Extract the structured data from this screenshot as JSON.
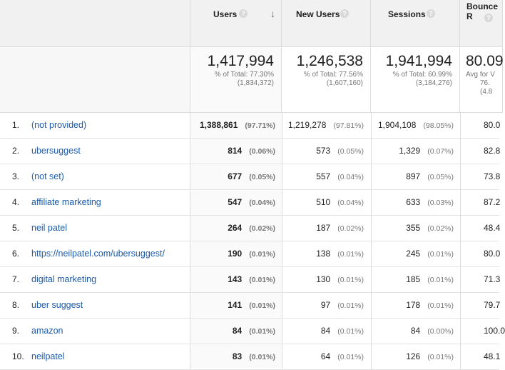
{
  "header": {
    "users": "Users",
    "new_users": "New Users",
    "sessions": "Sessions",
    "bounce": "Bounce R",
    "help": "?",
    "sort_arrow": "↓"
  },
  "totals": {
    "users": {
      "value": "1,417,994",
      "pct": "% of Total: 77.30%",
      "of": "(1,834,372)"
    },
    "new_users": {
      "value": "1,246,538",
      "pct": "% of Total: 77.56%",
      "of": "(1,607,160)"
    },
    "sessions": {
      "value": "1,941,994",
      "pct": "% of Total: 60.99%",
      "of": "(3,184,276)"
    },
    "bounce": {
      "value": "80.09",
      "pct": "Avg for V",
      "of": "76.",
      "of2": "(4.8"
    }
  },
  "rows": [
    {
      "n": "1.",
      "kw": "(not provided)",
      "users": "1,388,861",
      "users_pct": "(97.71%)",
      "new": "1,219,278",
      "new_pct": "(97.81%)",
      "sess": "1,904,108",
      "sess_pct": "(98.05%)",
      "bounce": "80.0"
    },
    {
      "n": "2.",
      "kw": "ubersuggest",
      "users": "814",
      "users_pct": "(0.06%)",
      "new": "573",
      "new_pct": "(0.05%)",
      "sess": "1,329",
      "sess_pct": "(0.07%)",
      "bounce": "82.8"
    },
    {
      "n": "3.",
      "kw": "(not set)",
      "users": "677",
      "users_pct": "(0.05%)",
      "new": "557",
      "new_pct": "(0.04%)",
      "sess": "897",
      "sess_pct": "(0.05%)",
      "bounce": "73.8"
    },
    {
      "n": "4.",
      "kw": "affiliate marketing",
      "users": "547",
      "users_pct": "(0.04%)",
      "new": "510",
      "new_pct": "(0.04%)",
      "sess": "633",
      "sess_pct": "(0.03%)",
      "bounce": "87.2"
    },
    {
      "n": "5.",
      "kw": "neil patel",
      "users": "264",
      "users_pct": "(0.02%)",
      "new": "187",
      "new_pct": "(0.02%)",
      "sess": "355",
      "sess_pct": "(0.02%)",
      "bounce": "48.4"
    },
    {
      "n": "6.",
      "kw": "https://neilpatel.com/ubersuggest/",
      "users": "190",
      "users_pct": "(0.01%)",
      "new": "138",
      "new_pct": "(0.01%)",
      "sess": "245",
      "sess_pct": "(0.01%)",
      "bounce": "80.0"
    },
    {
      "n": "7.",
      "kw": "digital marketing",
      "users": "143",
      "users_pct": "(0.01%)",
      "new": "130",
      "new_pct": "(0.01%)",
      "sess": "185",
      "sess_pct": "(0.01%)",
      "bounce": "71.3"
    },
    {
      "n": "8.",
      "kw": "uber suggest",
      "users": "141",
      "users_pct": "(0.01%)",
      "new": "97",
      "new_pct": "(0.01%)",
      "sess": "178",
      "sess_pct": "(0.01%)",
      "bounce": "79.7"
    },
    {
      "n": "9.",
      "kw": "amazon",
      "users": "84",
      "users_pct": "(0.01%)",
      "new": "84",
      "new_pct": "(0.01%)",
      "sess": "84",
      "sess_pct": "(0.00%)",
      "bounce": "100.0"
    },
    {
      "n": "10.",
      "kw": "neilpatel",
      "users": "83",
      "users_pct": "(0.01%)",
      "new": "64",
      "new_pct": "(0.01%)",
      "sess": "126",
      "sess_pct": "(0.01%)",
      "bounce": "48.1"
    }
  ]
}
